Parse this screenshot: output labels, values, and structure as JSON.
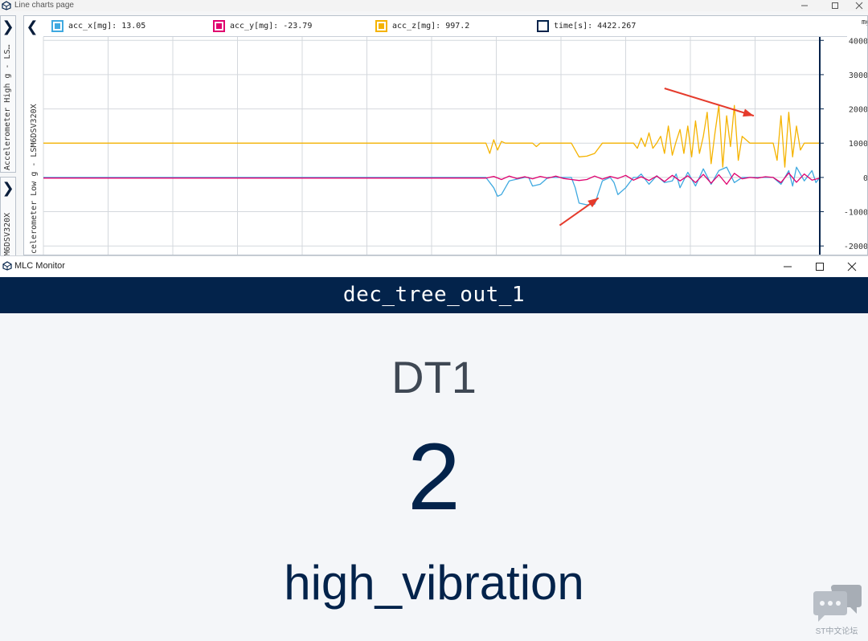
{
  "top_window": {
    "title": "Line charts page",
    "side_panels": {
      "high_g_label": "Accelerometer High g - LS…",
      "low_g_label_outer": "M6DSV320X",
      "low_g_label_inner": "celerometer Low g - LSM6DSV320X"
    },
    "legend": [
      {
        "label": "acc_x[mg]: 13.05",
        "color": "#3fa9e0"
      },
      {
        "label": "acc_y[mg]: -23.79",
        "color": "#e0006e"
      },
      {
        "label": "acc_z[mg]: 997.2",
        "color": "#f5b300"
      },
      {
        "label": "time[s]: 4422.267",
        "color": "#03234b"
      }
    ],
    "y_unit": "mg",
    "annotation_arrow_color": "#e53b2c"
  },
  "chart_data": {
    "type": "line",
    "xlabel": "",
    "ylabel": "mg",
    "y_ticks": [
      4000,
      3000,
      2000,
      1000,
      0,
      -1000,
      -2000
    ],
    "ylim": [
      -2300,
      4100
    ],
    "xlim": [
      0,
      100
    ],
    "grid": true,
    "series": [
      {
        "name": "acc_x[mg]",
        "color": "#3fa9e0",
        "x": [
          0,
          57,
          58,
          58.5,
          59,
          60,
          61,
          62,
          62.5,
          63,
          64,
          65,
          66,
          68,
          68.5,
          69,
          70,
          71,
          72,
          73,
          73.5,
          74,
          75,
          76,
          76.5,
          77,
          78,
          79,
          80,
          81,
          81.5,
          82,
          83,
          84,
          85,
          86,
          87,
          88,
          89,
          90,
          91,
          92,
          93,
          94,
          95,
          96,
          96.5,
          97,
          98,
          99,
          99.5,
          100
        ],
        "values": [
          0,
          0,
          -300,
          -550,
          -500,
          -100,
          -50,
          0,
          0,
          -250,
          -200,
          0,
          0,
          0,
          -300,
          -750,
          -800,
          -780,
          -100,
          0,
          -150,
          -500,
          -300,
          0,
          0,
          100,
          -200,
          50,
          -150,
          -100,
          100,
          -300,
          150,
          -250,
          250,
          -200,
          200,
          300,
          -150,
          0,
          0,
          0,
          0,
          0,
          -200,
          200,
          -250,
          300,
          -100,
          200,
          -150,
          0
        ]
      },
      {
        "name": "acc_y[mg]",
        "color": "#e0006e",
        "x": [
          0,
          57,
          58,
          59,
          60,
          61,
          62,
          63,
          64,
          65,
          66,
          67,
          68,
          69,
          70,
          71,
          72,
          73,
          74,
          75,
          76,
          77,
          78,
          79,
          80,
          81,
          82,
          83,
          84,
          85,
          86,
          87,
          88,
          89,
          90,
          91,
          92,
          93,
          94,
          95,
          96,
          97,
          98,
          99,
          100
        ],
        "values": [
          -20,
          -20,
          30,
          -60,
          40,
          -30,
          20,
          -40,
          30,
          -20,
          40,
          -30,
          -60,
          -90,
          -60,
          40,
          -50,
          30,
          -30,
          60,
          -80,
          20,
          -90,
          40,
          -120,
          60,
          -100,
          50,
          -150,
          90,
          -170,
          80,
          -200,
          120,
          -40,
          0,
          -20,
          20,
          0,
          -150,
          130,
          -140,
          100,
          -80,
          -20
        ]
      },
      {
        "name": "acc_z[mg]",
        "color": "#f5b300",
        "x": [
          0,
          57,
          57.5,
          58,
          58.5,
          59,
          59.5,
          60,
          61,
          62,
          63,
          63.5,
          64,
          65,
          66,
          67,
          68,
          68.5,
          69,
          70,
          71,
          72,
          72.5,
          73,
          74,
          75,
          76,
          76.5,
          77,
          77.5,
          78,
          78.5,
          79,
          79.5,
          80,
          80.5,
          81,
          81.5,
          82,
          82.5,
          83,
          83.5,
          84,
          84.5,
          85,
          85.5,
          86,
          86.5,
          87,
          87.5,
          88,
          88.5,
          89,
          89.5,
          90,
          91,
          92,
          93,
          94,
          94.5,
          95,
          95.5,
          96,
          96.5,
          97,
          97.5,
          98,
          99,
          100
        ],
        "values": [
          1000,
          1000,
          700,
          1100,
          800,
          1050,
          1000,
          1000,
          1000,
          1000,
          1000,
          900,
          1000,
          1000,
          1000,
          1000,
          1000,
          800,
          600,
          620,
          700,
          1000,
          1000,
          1000,
          1000,
          1000,
          1000,
          850,
          1150,
          900,
          1300,
          850,
          1000,
          1200,
          700,
          1500,
          650,
          1050,
          1400,
          700,
          1500,
          600,
          1650,
          700,
          1200,
          1900,
          400,
          1300,
          2100,
          300,
          1800,
          900,
          2100,
          500,
          1200,
          1000,
          1000,
          1000,
          1000,
          500,
          1800,
          300,
          1900,
          600,
          1500,
          800,
          1000,
          1000,
          1000
        ]
      }
    ],
    "annotations": [
      {
        "type": "arrow",
        "from": [
          80,
          2600
        ],
        "to": [
          91.5,
          1800
        ]
      },
      {
        "type": "arrow",
        "from": [
          66.5,
          -1400
        ],
        "to": [
          71.5,
          -600
        ]
      }
    ]
  },
  "bottom_window": {
    "title": "MLC Monitor",
    "header": "dec_tree_out_1",
    "name": "DT1",
    "value": "2",
    "label": "high_vibration"
  },
  "watermark": {
    "text": "ST中文论坛"
  }
}
